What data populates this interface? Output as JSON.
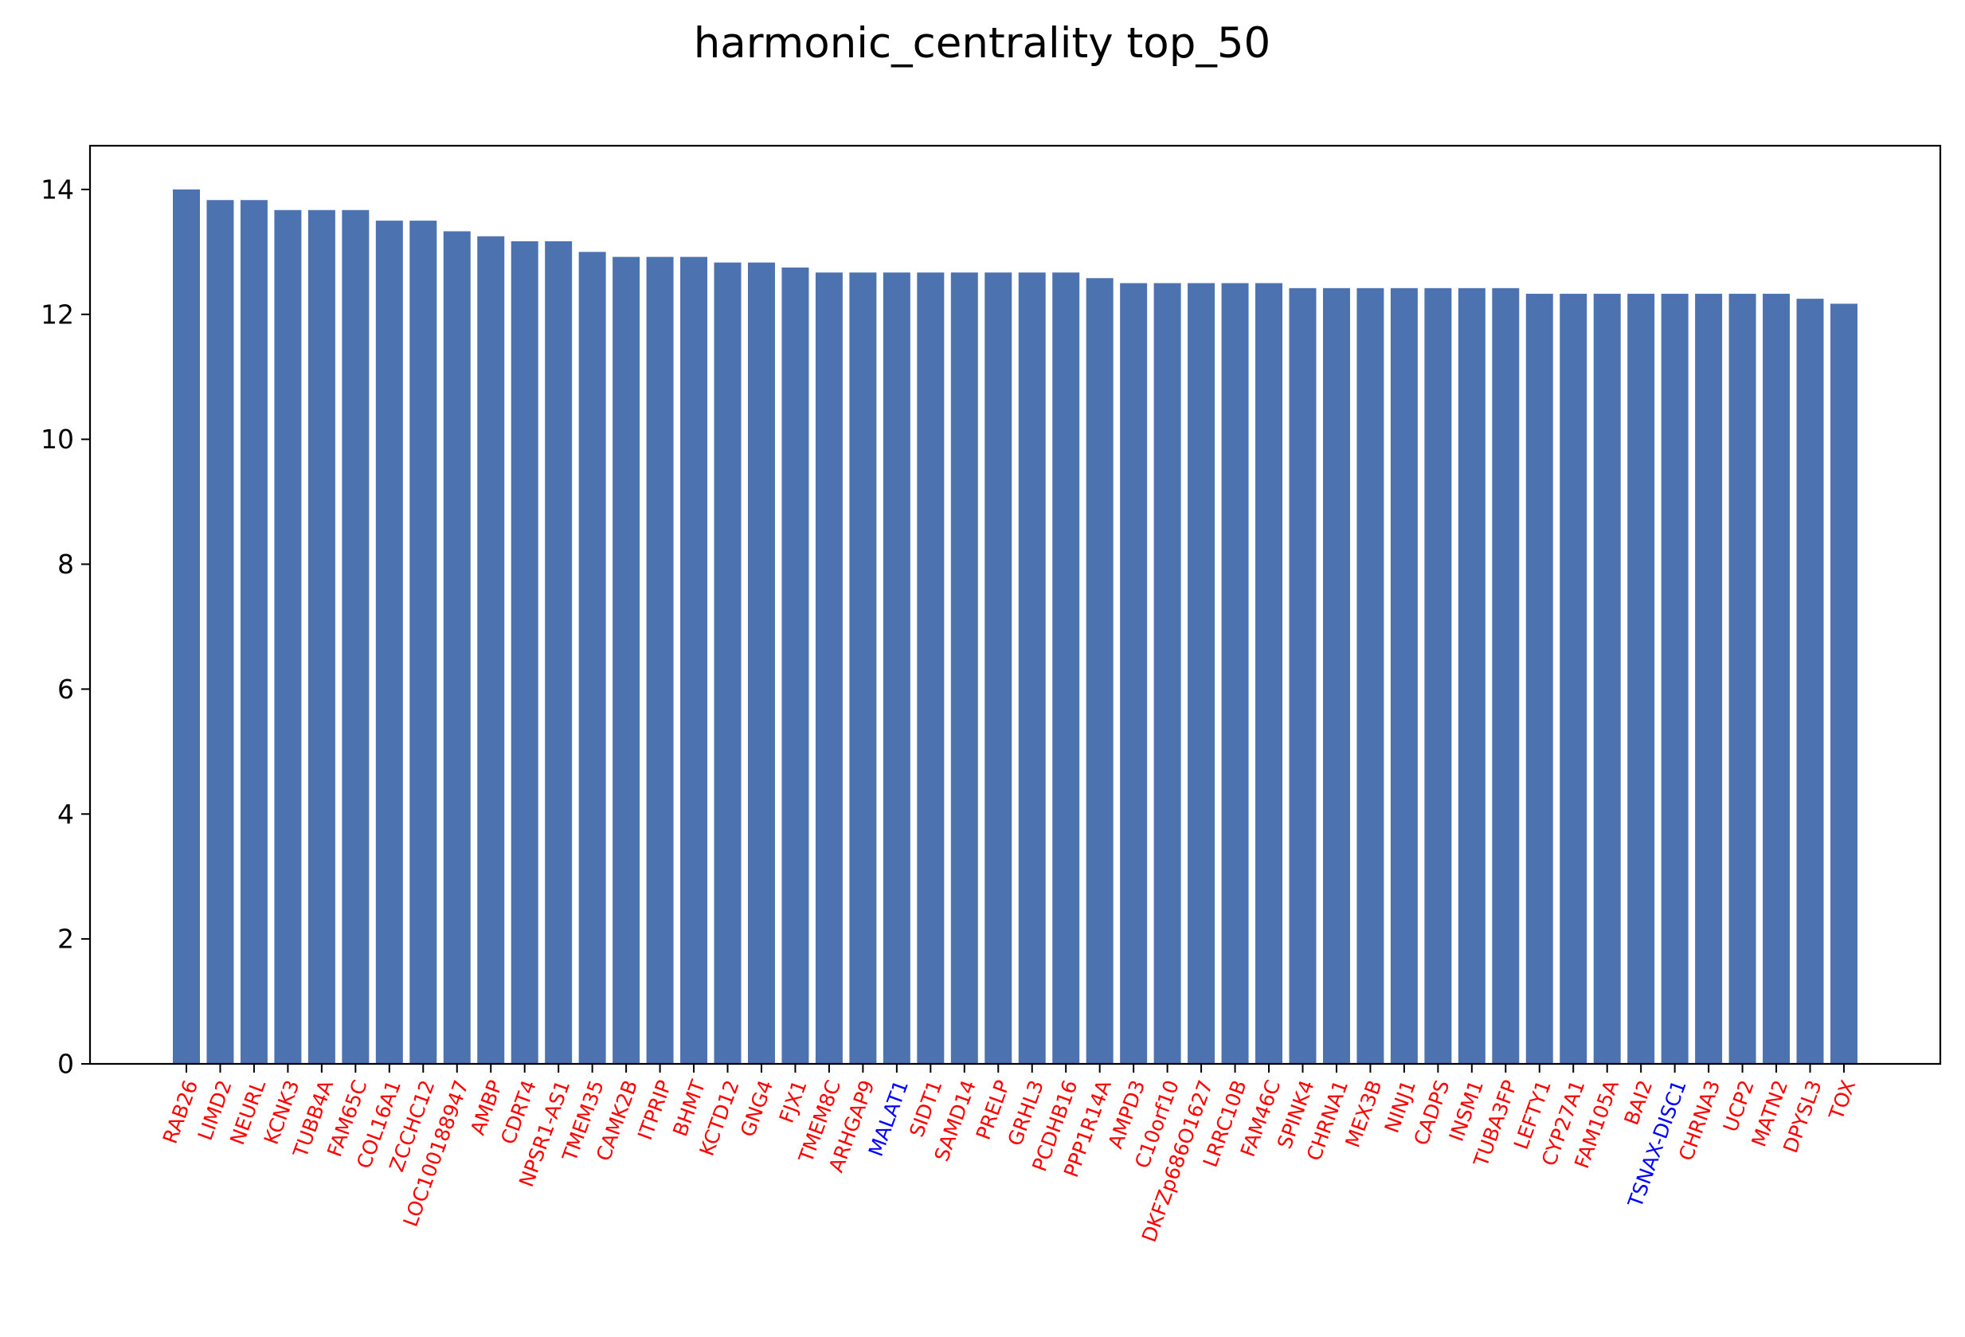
{
  "chart_data": {
    "type": "bar",
    "title": "harmonic_centrality top_50",
    "xlabel": "",
    "ylabel": "",
    "ylim": [
      0,
      14.7
    ],
    "yticks": [
      0,
      2,
      4,
      6,
      8,
      10,
      12,
      14
    ],
    "grid": false,
    "bar_color": "#4c72b0",
    "label_colors": {
      "red": "#ff0000",
      "blue": "#0000ff"
    },
    "categories": [
      "RAB26",
      "LIMD2",
      "NEURL",
      "KCNK3",
      "TUBB4A",
      "FAM65C",
      "COL16A1",
      "ZCCHC12",
      "LOC100188947",
      "AMBP",
      "CDRT4",
      "NPSR1-AS1",
      "TMEM35",
      "CAMK2B",
      "ITPRIP",
      "BHMT",
      "KCTD12",
      "GNG4",
      "FJX1",
      "TMEM8C",
      "ARHGAP9",
      "MALAT1",
      "SIDT1",
      "SAMD14",
      "PRELP",
      "GRHL3",
      "PCDHB16",
      "PPP1R14A",
      "AMPD3",
      "C10orf10",
      "DKFZp686O1627",
      "LRRC10B",
      "FAM46C",
      "SPINK4",
      "CHRNA1",
      "MEX3B",
      "NINJ1",
      "CADPS",
      "INSM1",
      "TUBA3FP",
      "LEFTY1",
      "CYP27A1",
      "FAM105A",
      "BAI2",
      "TSNAX-DISC1",
      "CHRNA3",
      "UCP2",
      "MATN2",
      "DPYSL3",
      "TOX"
    ],
    "values": [
      14.0,
      13.83,
      13.83,
      13.67,
      13.67,
      13.67,
      13.5,
      13.5,
      13.33,
      13.25,
      13.17,
      13.17,
      13.0,
      12.92,
      12.92,
      12.92,
      12.83,
      12.83,
      12.75,
      12.67,
      12.67,
      12.67,
      12.67,
      12.67,
      12.67,
      12.67,
      12.67,
      12.58,
      12.5,
      12.5,
      12.5,
      12.5,
      12.5,
      12.42,
      12.42,
      12.42,
      12.42,
      12.42,
      12.42,
      12.42,
      12.33,
      12.33,
      12.33,
      12.33,
      12.33,
      12.33,
      12.33,
      12.33,
      12.25,
      12.17
    ],
    "label_color_keys": [
      "red",
      "red",
      "red",
      "red",
      "red",
      "red",
      "red",
      "red",
      "red",
      "red",
      "red",
      "red",
      "red",
      "red",
      "red",
      "red",
      "red",
      "red",
      "red",
      "red",
      "red",
      "blue",
      "red",
      "red",
      "red",
      "red",
      "red",
      "red",
      "red",
      "red",
      "red",
      "red",
      "red",
      "red",
      "red",
      "red",
      "red",
      "red",
      "red",
      "red",
      "red",
      "red",
      "red",
      "red",
      "blue",
      "red",
      "red",
      "red",
      "red",
      "red"
    ]
  }
}
